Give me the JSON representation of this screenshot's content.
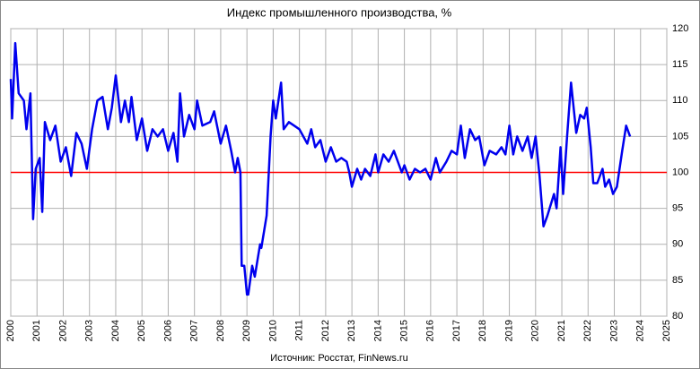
{
  "chart_data": {
    "type": "line",
    "title": "Индекс промышленного производства, %",
    "source": "Источник: Росстат, FinNews.ru",
    "x": [
      2000.0,
      2000.05,
      2000.17,
      2000.3,
      2000.5,
      2000.6,
      2000.75,
      2000.85,
      2000.95,
      2001.1,
      2001.2,
      2001.3,
      2001.5,
      2001.7,
      2001.9,
      2002.1,
      2002.3,
      2002.5,
      2002.7,
      2002.9,
      2003.1,
      2003.3,
      2003.5,
      2003.7,
      2003.85,
      2004.0,
      2004.2,
      2004.35,
      2004.5,
      2004.6,
      2004.8,
      2005.0,
      2005.2,
      2005.4,
      2005.6,
      2005.8,
      2006.0,
      2006.2,
      2006.35,
      2006.45,
      2006.6,
      2006.8,
      2007.0,
      2007.1,
      2007.3,
      2007.6,
      2007.75,
      2008.0,
      2008.2,
      2008.4,
      2008.55,
      2008.65,
      2008.75,
      2008.8,
      2008.9,
      2009.0,
      2009.05,
      2009.2,
      2009.3,
      2009.5,
      2009.55,
      2009.75,
      2009.9,
      2010.0,
      2010.1,
      2010.3,
      2010.4,
      2010.6,
      2010.8,
      2011.0,
      2011.3,
      2011.45,
      2011.6,
      2011.8,
      2012.0,
      2012.2,
      2012.4,
      2012.6,
      2012.8,
      2012.9,
      2013.0,
      2013.2,
      2013.35,
      2013.5,
      2013.7,
      2013.9,
      2014.0,
      2014.2,
      2014.4,
      2014.6,
      2014.9,
      2015.0,
      2015.2,
      2015.4,
      2015.6,
      2015.8,
      2016.0,
      2016.2,
      2016.35,
      2016.6,
      2016.8,
      2017.0,
      2017.15,
      2017.3,
      2017.5,
      2017.7,
      2017.85,
      2018.05,
      2018.25,
      2018.5,
      2018.7,
      2018.85,
      2019.0,
      2019.15,
      2019.3,
      2019.5,
      2019.7,
      2019.85,
      2020.0,
      2020.15,
      2020.3,
      2020.45,
      2020.7,
      2020.8,
      2020.95,
      2021.05,
      2021.2,
      2021.35,
      2021.55,
      2021.7,
      2021.85,
      2021.95,
      2022.1,
      2022.2,
      2022.35,
      2022.55,
      2022.65,
      2022.8,
      2022.95,
      2023.1,
      2023.3,
      2023.45,
      2023.6
    ],
    "series": [
      {
        "color": "#0000ee",
        "values": [
          113,
          107.5,
          118,
          111,
          110,
          106,
          111,
          93.5,
          100.5,
          102,
          94.5,
          107,
          104.5,
          106.5,
          101.5,
          103.5,
          99.5,
          105.5,
          104,
          100.5,
          106,
          110,
          110.5,
          106,
          109,
          113.5,
          107,
          110,
          107,
          110.5,
          104.5,
          107.5,
          103,
          106,
          105,
          106,
          103,
          105.5,
          101.5,
          111,
          105,
          108,
          106,
          110,
          106.5,
          107,
          108.5,
          104,
          106.5,
          103,
          100,
          102,
          100,
          87,
          87,
          83,
          83,
          87,
          85.5,
          90,
          89.5,
          94,
          105,
          110,
          107.5,
          112.5,
          106,
          107,
          106.5,
          106,
          104,
          106,
          103.5,
          104.5,
          101.5,
          103.5,
          101.5,
          102,
          101.5,
          100,
          98,
          100.5,
          99,
          100.5,
          99.5,
          102.5,
          100,
          102.5,
          101.5,
          103,
          100,
          101,
          99,
          100.5,
          100,
          100.5,
          99,
          102,
          100,
          101.5,
          103,
          102.5,
          106.5,
          102,
          106,
          104.5,
          105,
          101,
          103,
          102.5,
          103.5,
          102.5,
          106.5,
          102.5,
          105,
          103,
          105,
          102,
          105,
          99.5,
          92.5,
          94,
          97,
          95,
          103.5,
          97,
          105,
          112.5,
          105.5,
          108,
          107.5,
          109,
          103.5,
          98.5,
          98.5,
          100.5,
          98,
          99,
          97,
          98,
          103,
          106.5,
          105
        ]
      }
    ],
    "xlim": [
      2000,
      2025
    ],
    "xticks": [
      2000,
      2001,
      2002,
      2003,
      2004,
      2005,
      2006,
      2007,
      2008,
      2009,
      2010,
      2011,
      2012,
      2013,
      2014,
      2015,
      2016,
      2017,
      2018,
      2019,
      2020,
      2021,
      2022,
      2023,
      2024,
      2025
    ],
    "ylim": [
      80,
      120
    ],
    "yticks": [
      80,
      85,
      90,
      95,
      100,
      105,
      110,
      115,
      120
    ],
    "grid": true,
    "reference_line": 100,
    "reference_color": "#ff0000"
  }
}
